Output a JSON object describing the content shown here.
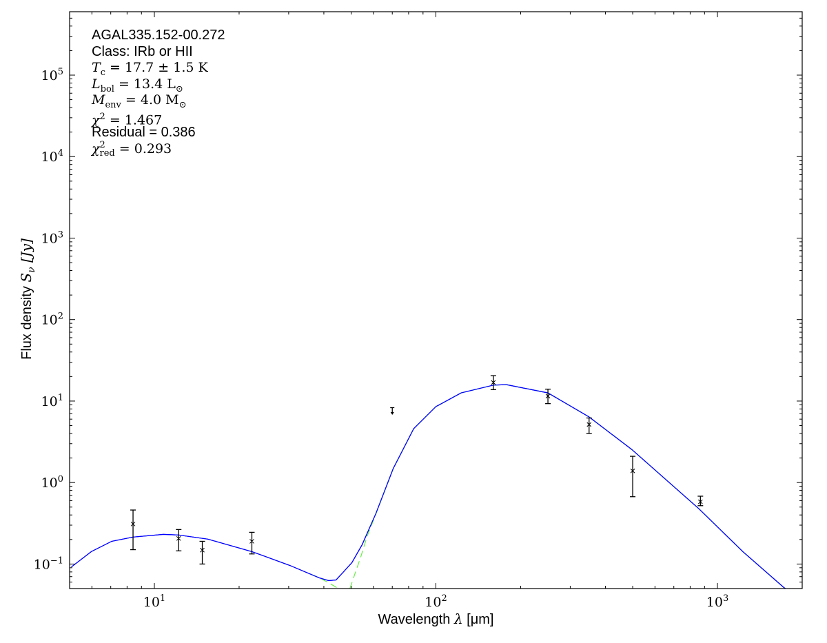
{
  "chart_data": {
    "type": "scatter",
    "xscale": "log",
    "yscale": "log",
    "xlim": [
      5,
      2000
    ],
    "ylim": [
      0.05,
      600000
    ],
    "xlabel": {
      "text": "Wavelength ",
      "sym": "λ",
      "unit": " [μm]"
    },
    "ylabel": {
      "text": "Flux density ",
      "sym": "S",
      "sub": "ν",
      "unit": " [Jy]"
    },
    "xticks": [
      {
        "base": "10",
        "exp": "1",
        "value": 10
      },
      {
        "base": "10",
        "exp": "2",
        "value": 100
      },
      {
        "base": "10",
        "exp": "3",
        "value": 1000
      }
    ],
    "yticks": [
      {
        "base": "10",
        "exp": "−1",
        "value": 0.1
      },
      {
        "base": "10",
        "exp": "0",
        "value": 1
      },
      {
        "base": "10",
        "exp": "1",
        "value": 10
      },
      {
        "base": "10",
        "exp": "2",
        "value": 100
      },
      {
        "base": "10",
        "exp": "3",
        "value": 1000
      },
      {
        "base": "10",
        "exp": "4",
        "value": 10000
      },
      {
        "base": "10",
        "exp": "5",
        "value": 100000
      }
    ],
    "grid": false,
    "points": [
      {
        "x": 8.4,
        "y": 0.31,
        "lo": 0.15,
        "hi": 0.46
      },
      {
        "x": 12.2,
        "y": 0.206,
        "lo": 0.145,
        "hi": 0.265
      },
      {
        "x": 14.8,
        "y": 0.148,
        "lo": 0.1,
        "hi": 0.19
      },
      {
        "x": 22.2,
        "y": 0.19,
        "lo": 0.133,
        "hi": 0.245
      },
      {
        "x": 160,
        "y": 16.9,
        "lo": 13.8,
        "hi": 20.5
      },
      {
        "x": 250,
        "y": 11.5,
        "lo": 9.3,
        "hi": 14.0
      },
      {
        "x": 350,
        "y": 5.15,
        "lo": 4.0,
        "hi": 6.2
      },
      {
        "x": 500,
        "y": 1.39,
        "lo": 0.67,
        "hi": 2.1
      },
      {
        "x": 870,
        "y": 0.58,
        "lo": 0.52,
        "hi": 0.68
      }
    ],
    "upper_limits": [
      {
        "x": 70,
        "y": 8.3,
        "arrow_to": 6.9
      }
    ],
    "series": [
      {
        "name": "model total",
        "color": "#0000ff",
        "style": "solid",
        "x": [
          5.07,
          5.97,
          7.06,
          8.4,
          10.76,
          12.2,
          15.5,
          22.2,
          30.3,
          38.5,
          41.6,
          44.2,
          46.8,
          50.3,
          54.7,
          61.2,
          70.5,
          83.4,
          100,
          123,
          160,
          178,
          250,
          350,
          496,
          859,
          1231,
          1722,
          1972
        ],
        "y": [
          0.092,
          0.142,
          0.19,
          0.214,
          0.231,
          0.227,
          0.202,
          0.142,
          0.096,
          0.0677,
          0.0625,
          0.0638,
          0.079,
          0.104,
          0.173,
          0.416,
          1.48,
          4.58,
          8.55,
          12.6,
          15.7,
          15.9,
          12.6,
          6.38,
          2.55,
          0.477,
          0.142,
          0.0515,
          0.038
        ]
      },
      {
        "name": "warm component",
        "color": "#66ee44",
        "style": "dashed",
        "x": [
          36,
          38.5,
          41.6,
          45
        ],
        "y": [
          0.075,
          0.0677,
          0.059,
          0.05
        ]
      },
      {
        "name": "cold component",
        "color": "#66ee44",
        "style": "dashed",
        "x": [
          49.5,
          51.5,
          54,
          57,
          61.2,
          70.5,
          83.4,
          100,
          123,
          160,
          178,
          250,
          350,
          496,
          859,
          1231,
          1722,
          1972
        ],
        "y": [
          0.05,
          0.075,
          0.12,
          0.22,
          0.41,
          1.47,
          4.58,
          8.55,
          12.6,
          15.7,
          15.9,
          12.6,
          6.38,
          2.55,
          0.477,
          0.142,
          0.0515,
          0.038
        ]
      }
    ],
    "annotations": [
      {
        "kind": "sans",
        "text": "AGAL335.152-00.272"
      },
      {
        "kind": "sans",
        "text": "Class: IRb or HII"
      },
      {
        "kind": "math",
        "sym": "T",
        "sub": "c",
        "sup": "",
        "rest": " = 17.7 ± 1.5 K"
      },
      {
        "kind": "math",
        "sym": "L",
        "sub": "bol",
        "sup": "",
        "rest": " = 13.4 L",
        "rest_sub": "⊙"
      },
      {
        "kind": "math",
        "sym": "M",
        "sub": "env",
        "sup": "",
        "rest": " = 4.0 M",
        "rest_sub": "⊙"
      },
      {
        "kind": "math",
        "sym": "χ",
        "sub": "",
        "sup": "2",
        "rest": " = 1.467"
      },
      {
        "kind": "sans",
        "text": "Residual = 0.386"
      },
      {
        "kind": "math",
        "sym": "χ",
        "sub": "red",
        "sup": "2",
        "rest": " = 0.293"
      }
    ]
  }
}
